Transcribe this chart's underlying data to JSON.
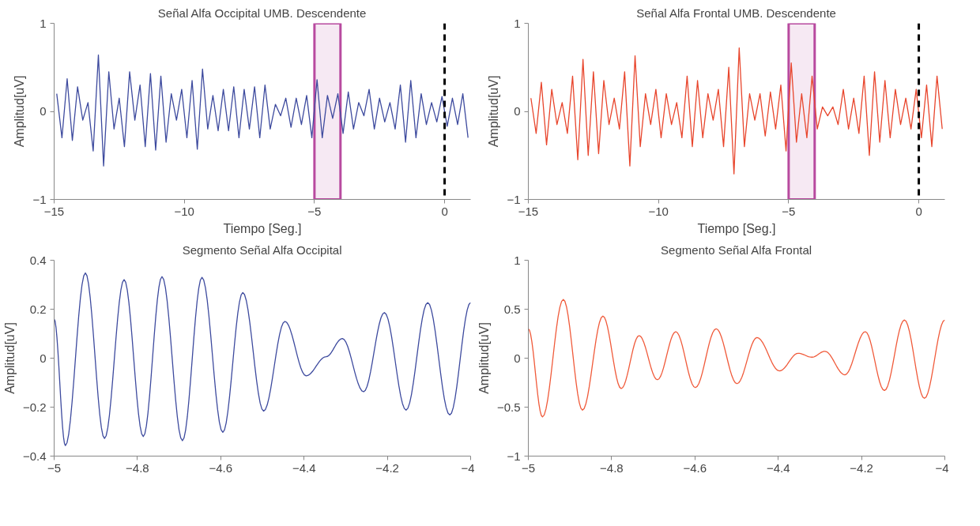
{
  "chart_data": [
    {
      "type": "line",
      "title": "Señal Alfa Occipital UMB. Descendente",
      "xlabel": "Tiempo [Seg.]",
      "ylabel": "Amplitud[uV]",
      "xlim": [
        -15,
        1
      ],
      "ylim": [
        -1,
        1
      ],
      "xticks": [
        {
          "value": -15,
          "label": "−15"
        },
        {
          "value": -10,
          "label": "−10"
        },
        {
          "value": -5,
          "label": "−5"
        },
        0
      ],
      "yticks": [
        {
          "value": -1,
          "label": "−1"
        },
        0,
        1
      ],
      "bands": [
        {
          "axis": "x",
          "from": -5,
          "to": -4,
          "color": "#b84a9f"
        }
      ],
      "ref_lines": [
        {
          "axis": "x",
          "value": 0,
          "color": "#000000",
          "line_style": "dashed"
        }
      ],
      "series": [
        {
          "color": "#3d4a9e",
          "x": [
            -14.9,
            -14.7,
            -14.5,
            -14.3,
            -14.1,
            -13.9,
            -13.7,
            -13.5,
            -13.3,
            -13.1,
            -12.9,
            -12.7,
            -12.5,
            -12.3,
            -12.1,
            -11.9,
            -11.7,
            -11.5,
            -11.3,
            -11.1,
            -10.9,
            -10.7,
            -10.5,
            -10.3,
            -10.1,
            -9.9,
            -9.7,
            -9.5,
            -9.3,
            -9.1,
            -8.9,
            -8.7,
            -8.5,
            -8.3,
            -8.1,
            -7.9,
            -7.7,
            -7.5,
            -7.3,
            -7.1,
            -6.9,
            -6.7,
            -6.5,
            -6.3,
            -6.1,
            -5.9,
            -5.7,
            -5.5,
            -5.3,
            -5.1,
            -4.9,
            -4.7,
            -4.5,
            -4.3,
            -4.1,
            -3.9,
            -3.7,
            -3.5,
            -3.3,
            -3.1,
            -2.9,
            -2.7,
            -2.5,
            -2.3,
            -2.1,
            -1.9,
            -1.7,
            -1.5,
            -1.3,
            -1.1,
            -0.9,
            -0.7,
            -0.5,
            -0.3,
            -0.1,
            0.1,
            0.3,
            0.5,
            0.7,
            0.9
          ],
          "values": [
            0.2,
            -0.3,
            0.37,
            -0.33,
            0.28,
            -0.1,
            0.1,
            -0.45,
            0.64,
            -0.62,
            0.45,
            -0.2,
            0.15,
            -0.4,
            0.45,
            -0.1,
            0.3,
            -0.4,
            0.43,
            -0.44,
            0.4,
            -0.35,
            0.2,
            -0.1,
            0.25,
            -0.3,
            0.35,
            -0.43,
            0.48,
            -0.2,
            0.18,
            -0.22,
            0.25,
            -0.22,
            0.28,
            -0.3,
            0.25,
            -0.2,
            0.28,
            -0.3,
            0.3,
            -0.2,
            0.08,
            -0.05,
            0.15,
            -0.18,
            0.15,
            -0.15,
            0.18,
            -0.3,
            0.36,
            -0.3,
            0.18,
            -0.08,
            0.2,
            -0.25,
            0.22,
            -0.2,
            0.1,
            -0.05,
            0.25,
            -0.2,
            0.15,
            -0.12,
            0.1,
            -0.2,
            0.3,
            -0.35,
            0.35,
            -0.3,
            0.2,
            -0.15,
            0.1,
            -0.12,
            0.17,
            -0.17,
            0.15,
            -0.15,
            0.2,
            -0.3
          ]
        }
      ]
    },
    {
      "type": "line",
      "title": "Señal Alfa Frontal UMB. Descendente",
      "xlabel": "Tiempo [Seg.]",
      "ylabel": "Amplitud[uV]",
      "xlim": [
        -15,
        1
      ],
      "ylim": [
        -1,
        1
      ],
      "xticks": [
        {
          "value": -15,
          "label": "−15"
        },
        {
          "value": -10,
          "label": "−10"
        },
        {
          "value": -5,
          "label": "−5"
        },
        0
      ],
      "yticks": [
        {
          "value": -1,
          "label": "−1"
        },
        0,
        1
      ],
      "bands": [
        {
          "axis": "x",
          "from": -5,
          "to": -4,
          "color": "#b84a9f"
        }
      ],
      "ref_lines": [
        {
          "axis": "x",
          "value": 0,
          "color": "#000000",
          "line_style": "dashed"
        }
      ],
      "series": [
        {
          "color": "#e8452c",
          "x": [
            -14.9,
            -14.7,
            -14.5,
            -14.3,
            -14.1,
            -13.9,
            -13.7,
            -13.5,
            -13.3,
            -13.1,
            -12.9,
            -12.7,
            -12.5,
            -12.3,
            -12.1,
            -11.9,
            -11.7,
            -11.5,
            -11.3,
            -11.1,
            -10.9,
            -10.7,
            -10.5,
            -10.3,
            -10.1,
            -9.9,
            -9.7,
            -9.5,
            -9.3,
            -9.1,
            -8.9,
            -8.7,
            -8.5,
            -8.3,
            -8.1,
            -7.9,
            -7.7,
            -7.5,
            -7.3,
            -7.1,
            -6.9,
            -6.7,
            -6.5,
            -6.3,
            -6.1,
            -5.9,
            -5.7,
            -5.5,
            -5.3,
            -5.1,
            -4.9,
            -4.7,
            -4.5,
            -4.3,
            -4.1,
            -3.9,
            -3.7,
            -3.5,
            -3.3,
            -3.1,
            -2.9,
            -2.7,
            -2.5,
            -2.3,
            -2.1,
            -1.9,
            -1.7,
            -1.5,
            -1.3,
            -1.1,
            -0.9,
            -0.7,
            -0.5,
            -0.3,
            -0.1,
            0.1,
            0.3,
            0.5,
            0.7,
            0.9
          ],
          "values": [
            0.15,
            -0.25,
            0.33,
            -0.38,
            0.25,
            -0.15,
            0.1,
            -0.25,
            0.4,
            -0.55,
            0.59,
            -0.5,
            0.45,
            -0.48,
            0.35,
            -0.15,
            0.15,
            -0.2,
            0.45,
            -0.62,
            0.63,
            -0.4,
            0.2,
            -0.15,
            0.25,
            -0.3,
            0.2,
            -0.15,
            0.1,
            -0.3,
            0.4,
            -0.4,
            0.35,
            -0.3,
            0.2,
            -0.1,
            0.25,
            -0.4,
            0.5,
            -0.71,
            0.72,
            -0.4,
            0.2,
            -0.1,
            0.2,
            -0.28,
            0.22,
            -0.2,
            0.3,
            -0.45,
            0.55,
            -0.35,
            0.2,
            -0.3,
            0.4,
            -0.2,
            0.05,
            -0.05,
            0.05,
            -0.15,
            0.25,
            -0.2,
            0.15,
            -0.25,
            0.4,
            -0.5,
            0.45,
            -0.35,
            0.35,
            -0.3,
            0.25,
            -0.15,
            0.15,
            -0.2,
            0.25,
            -0.3,
            0.3,
            -0.4,
            0.4,
            -0.2
          ]
        }
      ]
    },
    {
      "type": "line",
      "title": "Segmento Señal Alfa Occipital",
      "ylabel": "Amplitud[uV]",
      "xlim": [
        -5,
        -4
      ],
      "ylim": [
        -0.4,
        0.4
      ],
      "xticks": [
        {
          "value": -5,
          "label": "−5"
        },
        {
          "value": -4.8,
          "label": "−4.8"
        },
        {
          "value": -4.6,
          "label": "−4.6"
        },
        {
          "value": -4.4,
          "label": "−4.4"
        },
        {
          "value": -4.2,
          "label": "−4.2"
        },
        {
          "value": -4,
          "label": "−4"
        }
      ],
      "yticks": [
        {
          "value": -0.4,
          "label": "−0.4"
        },
        {
          "value": -0.2,
          "label": "−0.2"
        },
        0,
        0.2,
        0.4
      ],
      "series": [
        {
          "color": "#3d4a9e",
          "x": [
            -5,
            -4.973,
            -4.925,
            -4.879,
            -4.832,
            -4.786,
            -4.741,
            -4.692,
            -4.645,
            -4.595,
            -4.547,
            -4.497,
            -4.446,
            -4.395,
            -4.347,
            -4.308,
            -4.257,
            -4.207,
            -4.155,
            -4.103,
            -4.05,
            -4
          ],
          "values": [
            0.16,
            -0.357,
            0.348,
            -0.328,
            0.321,
            -0.32,
            0.333,
            -0.337,
            0.33,
            -0.303,
            0.268,
            -0.216,
            0.15,
            -0.072,
            0.006,
            0.08,
            -0.137,
            0.186,
            -0.212,
            0.227,
            -0.232,
            0.227
          ]
        }
      ]
    },
    {
      "type": "line",
      "title": "Segmento Señal Alfa Frontal",
      "ylabel": "Amplitud[uV]",
      "xlim": [
        -5,
        -4
      ],
      "ylim": [
        -1,
        1
      ],
      "xticks": [
        {
          "value": -5,
          "label": "−5"
        },
        {
          "value": -4.8,
          "label": "−4.8"
        },
        {
          "value": -4.6,
          "label": "−4.6"
        },
        {
          "value": -4.4,
          "label": "−4.4"
        },
        {
          "value": -4.2,
          "label": "−4.2"
        },
        {
          "value": -4,
          "label": "−4"
        }
      ],
      "yticks": [
        {
          "value": -1,
          "label": "−1"
        },
        {
          "value": -0.5,
          "label": "−0.5"
        },
        0,
        0.5,
        1
      ],
      "series": [
        {
          "color": "#f05a3a",
          "x": [
            -5,
            -4.966,
            -4.916,
            -4.87,
            -4.821,
            -4.777,
            -4.734,
            -4.69,
            -4.646,
            -4.599,
            -4.549,
            -4.499,
            -4.451,
            -4.397,
            -4.352,
            -4.319,
            -4.288,
            -4.24,
            -4.191,
            -4.145,
            -4.097,
            -4.049,
            -4
          ],
          "values": [
            0.3,
            -0.6,
            0.6,
            -0.53,
            0.43,
            -0.31,
            0.23,
            -0.22,
            0.27,
            -0.3,
            0.3,
            -0.26,
            0.21,
            -0.13,
            0.05,
            0.01,
            0.07,
            -0.17,
            0.27,
            -0.33,
            0.39,
            -0.41,
            0.39
          ]
        }
      ]
    }
  ]
}
